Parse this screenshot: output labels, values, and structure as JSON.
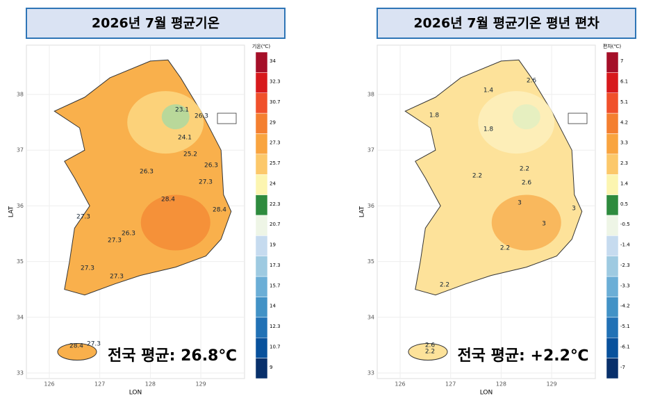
{
  "panels": [
    {
      "title": "2026년 7월 평균기온",
      "x_label": "LON",
      "y_label": "LAT",
      "xticks": [
        126,
        127,
        128,
        129
      ],
      "yticks": [
        33,
        34,
        35,
        36,
        37,
        38
      ],
      "legend": {
        "title": "기온(℃)",
        "colors": [
          "#a50f28",
          "#d7191c",
          "#f0502b",
          "#f47f30",
          "#f9a43f",
          "#fcc86a",
          "#fcf5b0",
          "#2e8b3e",
          "#eef5e6",
          "#c6dbef",
          "#9ecae1",
          "#6baed6",
          "#4292c6",
          "#2171b5",
          "#08519c",
          "#08306b"
        ],
        "labels": [
          "34",
          "32.3",
          "30.7",
          "29",
          "27.3",
          "25.7",
          "24",
          "22.3",
          "20.7",
          "19",
          "17.3",
          "15.7",
          "14",
          "12.3",
          "10.7",
          "9"
        ]
      },
      "contour_labels": [
        "23.1",
        "26.3",
        "24.1",
        "25.2",
        "26.3",
        "26.3",
        "27.3",
        "28.4",
        "28.4",
        "26.3",
        "27.3",
        "27.3",
        "27.3",
        "27.3",
        "28.4",
        "27.3"
      ],
      "national_average": "전국 평균: 26.8℃"
    },
    {
      "title": "2026년 7월 평균기온 평년 편차",
      "x_label": "LON",
      "y_label": "LAT",
      "xticks": [
        126,
        127,
        128,
        129
      ],
      "yticks": [
        33,
        34,
        35,
        36,
        37,
        38
      ],
      "legend": {
        "title": "편차(℃)",
        "colors": [
          "#a50f28",
          "#d7191c",
          "#f0502b",
          "#f47f30",
          "#f9a43f",
          "#fcc86a",
          "#fcf5b0",
          "#2e8b3e",
          "#eef5e6",
          "#c6dbef",
          "#9ecae1",
          "#6baed6",
          "#4292c6",
          "#2171b5",
          "#08519c",
          "#08306b"
        ],
        "labels": [
          "7",
          "6.1",
          "5.1",
          "4.2",
          "3.3",
          "2.3",
          "1.4",
          "0.5",
          "-0.5",
          "-1.4",
          "-2.3",
          "-3.3",
          "-4.2",
          "-5.1",
          "-6.1",
          "-7"
        ]
      },
      "contour_labels": [
        "1.4",
        "2.6",
        "1.8",
        "1.8",
        "2.2",
        "2.2",
        "2.6",
        "3",
        "3",
        "3",
        "2.2",
        "2.2",
        "2.6",
        "2.2"
      ],
      "national_average": "전국 평균: +2.2℃"
    }
  ]
}
